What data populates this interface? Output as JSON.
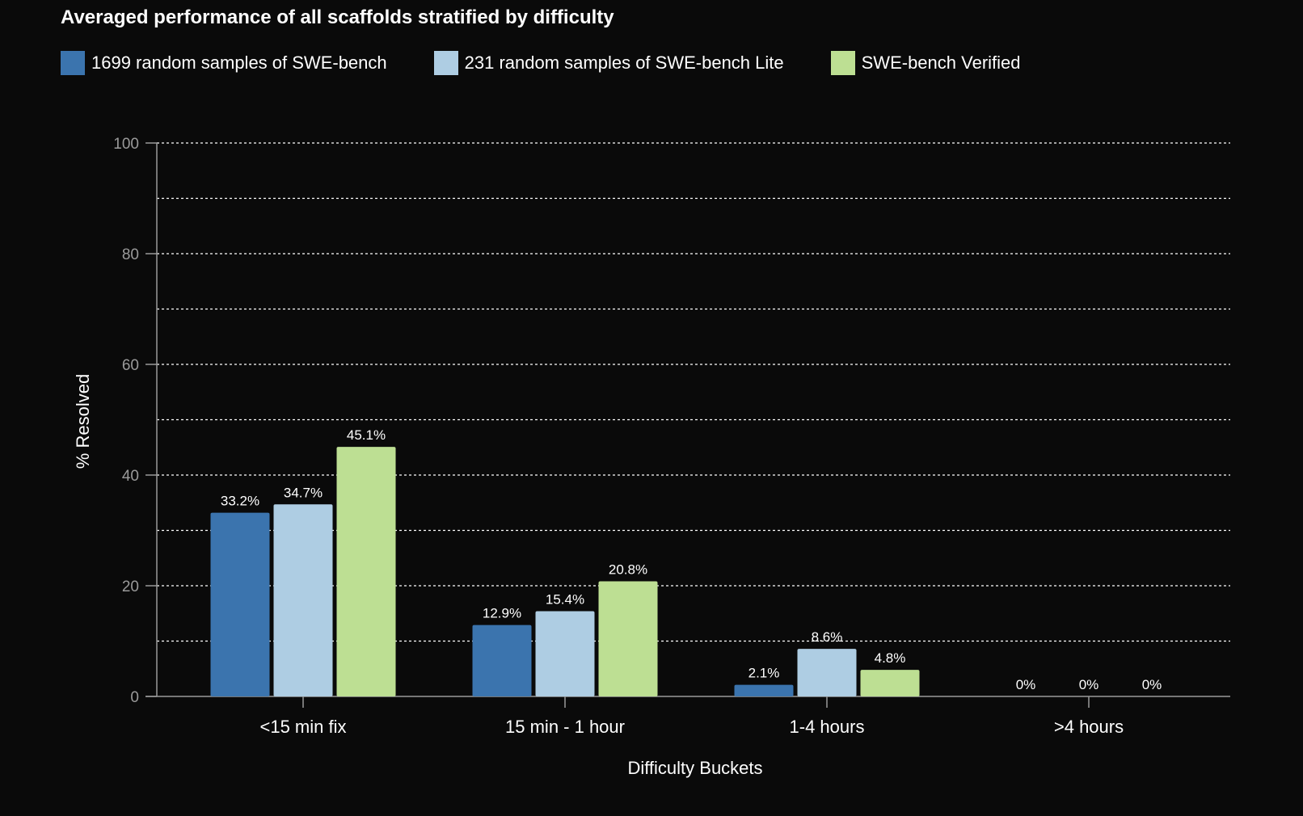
{
  "chart_data": {
    "type": "bar",
    "title": "Averaged performance of all scaffolds stratified by difficulty",
    "xlabel": "Difficulty Buckets",
    "ylabel": "% Resolved",
    "ylim": [
      0,
      100
    ],
    "yticks": [
      0,
      20,
      40,
      60,
      80,
      100
    ],
    "grid": true,
    "legend_position": "top-left",
    "categories": [
      "<15 min fix",
      "15 min - 1 hour",
      "1-4 hours",
      ">4 hours"
    ],
    "series": [
      {
        "name": "1699 random samples of SWE-bench",
        "color": "#3b74ae",
        "values": [
          33.2,
          12.9,
          2.1,
          0
        ],
        "labels": [
          "33.2%",
          "12.9%",
          "2.1%",
          "0%"
        ]
      },
      {
        "name": "231 random samples of SWE-bench Lite",
        "color": "#aecde3",
        "values": [
          34.7,
          15.4,
          8.6,
          0
        ],
        "labels": [
          "34.7%",
          "15.4%",
          "8.6%",
          "0%"
        ]
      },
      {
        "name": "SWE-bench Verified",
        "color": "#bddf93",
        "values": [
          45.1,
          20.8,
          4.8,
          0
        ],
        "labels": [
          "45.1%",
          "20.8%",
          "4.8%",
          "0%"
        ]
      }
    ]
  }
}
